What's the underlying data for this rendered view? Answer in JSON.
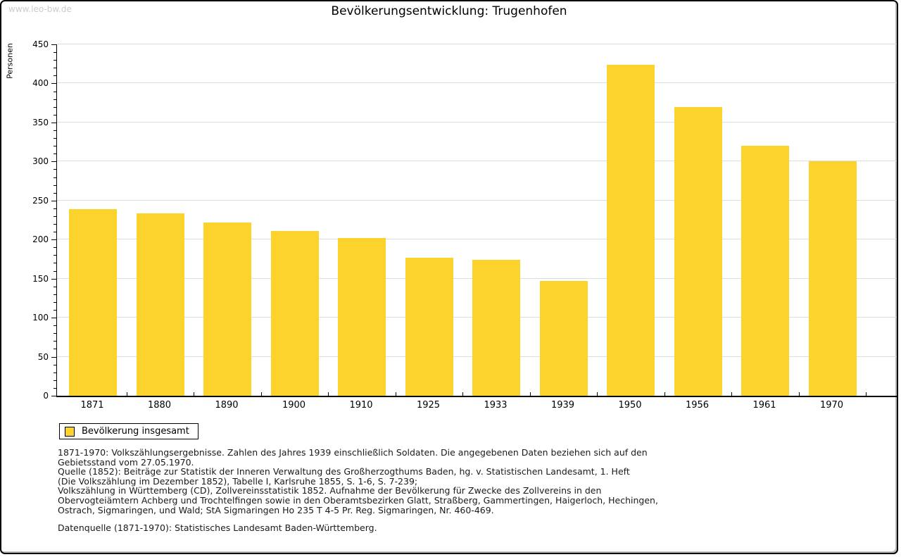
{
  "watermark": "www.leo-bw.de",
  "title": "Bevölkerungsentwicklung: Trugenhofen",
  "colors": {
    "bar": "#FCD32D",
    "grid": "#DDDDDD",
    "axis": "#000000",
    "watermark_text": "#CCCCCC"
  },
  "chart_data": {
    "type": "bar",
    "title": "Bevölkerungsentwicklung: Trugenhofen",
    "ylabel": "Personen",
    "xlabel": "",
    "categories": [
      "1871",
      "1880",
      "1890",
      "1900",
      "1910",
      "1925",
      "1933",
      "1939",
      "1950",
      "1956",
      "1961",
      "1970"
    ],
    "values": [
      239,
      234,
      222,
      211,
      202,
      177,
      174,
      147,
      424,
      370,
      320,
      300
    ],
    "ylim": [
      0,
      450
    ],
    "ytick_major": 50,
    "ytick_minor": 10,
    "grid": "horizontal",
    "legend_position": "bottom-left",
    "legend": [
      {
        "label": "Bevölkerung insgesamt",
        "color": "#FCD32D"
      }
    ]
  },
  "legend": {
    "label": "Bevölkerung insgesamt"
  },
  "footnotes": [
    "1871-1970: Volkszählungsergebnisse. Zahlen des Jahres 1939 einschließlich Soldaten. Die angegebenen Daten beziehen sich auf den",
    "Gebietsstand vom 27.05.1970.",
    "Quelle (1852): Beiträge zur Statistik der Inneren Verwaltung des Großherzogthums Baden, hg. v. Statistischen Landesamt, 1. Heft",
    "(Die Volkszählung im Dezember 1852), Tabelle I, Karlsruhe 1855, S. 1-6, S. 7-239;",
    "Volkszählung in Württemberg (CD), Zollvereinsstatistik 1852. Aufnahme der Bevölkerung für Zwecke des Zollvereins in den",
    "Obervogteiämtern Achberg und Trochtelfingen sowie in den Oberamtsbezirken Glatt, Straßberg, Gammertingen, Haigerloch, Hechingen,",
    "Ostrach, Sigmaringen, und Wald; StA Sigmaringen Ho 235 T 4-5 Pr. Reg. Sigmaringen, Nr. 460-469."
  ],
  "datasource": "Datenquelle (1871-1970): Statistisches Landesamt Baden-Württemberg."
}
